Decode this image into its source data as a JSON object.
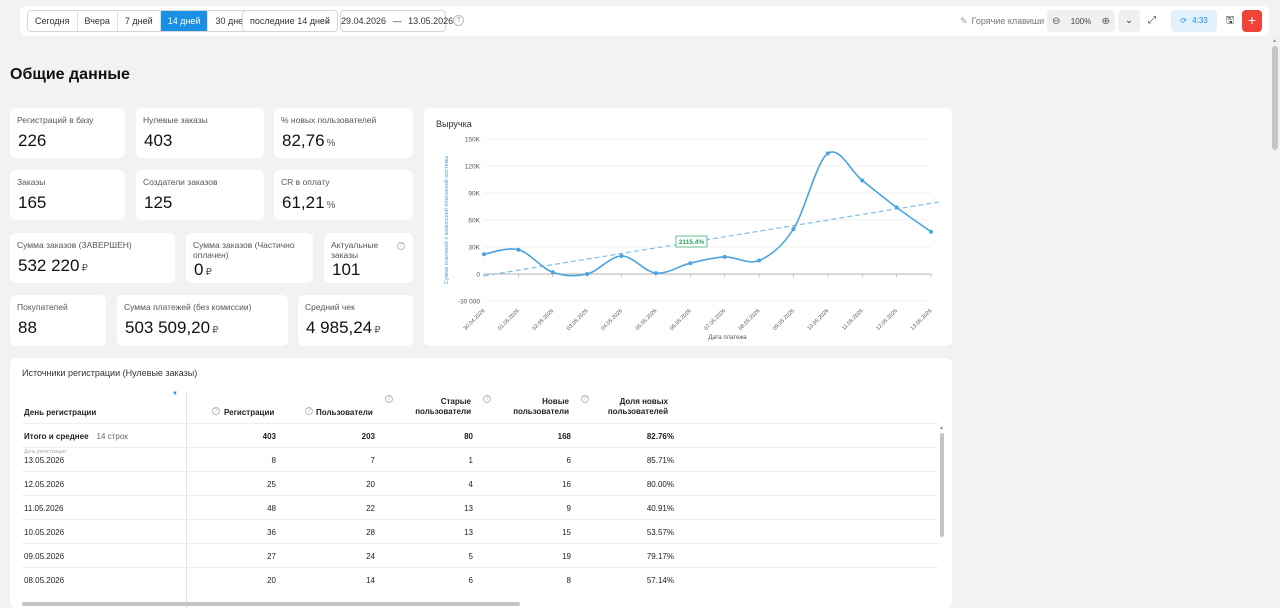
{
  "toolbar": {
    "periods": [
      {
        "label": "Сегодня",
        "active": false
      },
      {
        "label": "Вчера",
        "active": false
      },
      {
        "label": "7 дней",
        "active": false
      },
      {
        "label": "14 дней",
        "active": true
      },
      {
        "label": "30 дней",
        "active": false
      }
    ],
    "period_select": "последние 14 дней",
    "date_from": "29.04.2026",
    "date_separator": "—",
    "date_to": "13.05.2026",
    "hotkeys_label": "Горячие клавиши",
    "zoom_level": "100%",
    "refresh_time": "4:33"
  },
  "page_title": "Общие данные",
  "cards": [
    {
      "label": "Регистраций в базу",
      "value": "226",
      "unit": ""
    },
    {
      "label": "Нулевые заказы",
      "value": "403",
      "unit": ""
    },
    {
      "label": "% новых пользователей",
      "value": "82,76",
      "unit": "%"
    },
    {
      "label": "Заказы",
      "value": "165",
      "unit": ""
    },
    {
      "label": "Создатели заказов",
      "value": "125",
      "unit": ""
    },
    {
      "label": "CR в оплату",
      "value": "61,21",
      "unit": "%"
    },
    {
      "label": "Сумма заказов (ЗАВЕРШЕН)",
      "value": "532 220",
      "unit": "₽"
    },
    {
      "label": "Сумма заказов (Частично оплачен)",
      "value": "0",
      "unit": "₽"
    },
    {
      "label": "Актуальные заказы",
      "value": "101",
      "unit": ""
    },
    {
      "label": "Покупателей",
      "value": "88",
      "unit": ""
    },
    {
      "label": "Сумма платежей (без комиссии)",
      "value": "503 509,20",
      "unit": "₽"
    },
    {
      "label": "Средний чек",
      "value": "4 985,24",
      "unit": "₽"
    }
  ],
  "chart_data": {
    "type": "line",
    "title": "Выручка",
    "xlabel": "Дата платежа",
    "ylabel": "Сумма платежей с комиссией платежной системы",
    "categories": [
      "30.04.2026",
      "01.05.2026",
      "02.05.2026",
      "03.05.2026",
      "04.05.2026",
      "05.05.2026",
      "06.05.2026",
      "07.05.2026",
      "08.05.2026",
      "09.05.2026",
      "10.05.2026",
      "11.05.2026",
      "12.05.2026",
      "13.05.2026"
    ],
    "series": [
      {
        "values": [
          22000,
          27000,
          2000,
          0,
          20000,
          1000,
          12000,
          19000,
          15000,
          50000,
          134000,
          104000,
          74000,
          47000
        ],
        "color": "#4aa3df"
      }
    ],
    "trend": {
      "start": -2000,
      "end": 80000,
      "label": "2115.4%",
      "color": "#7cc0ea"
    },
    "ylim": [
      -30000,
      150000
    ],
    "yticks": [
      {
        "value": 150000,
        "label": "150K"
      },
      {
        "value": 120000,
        "label": "120K"
      },
      {
        "value": 90000,
        "label": "90K"
      },
      {
        "value": 60000,
        "label": "60K"
      },
      {
        "value": 30000,
        "label": "30K"
      },
      {
        "value": 0,
        "label": "0"
      },
      {
        "value": -30000,
        "label": "-30 000"
      }
    ],
    "grid": true,
    "legend": "none"
  },
  "table": {
    "title": "Источники регистрации (Нулевые заказы)",
    "columns": {
      "day": "День регистрации",
      "registrations": "Регистрации",
      "users": "Пользователи",
      "old_users": "Старые пользователи",
      "new_users": "Новые пользователи",
      "new_share": "Доля новых пользователей"
    },
    "first_row_sublabel": "День регистрации",
    "total": {
      "label": "Итого и среднее",
      "count": "14 строк",
      "registrations": "403",
      "users": "203",
      "old_users": "80",
      "new_users": "168",
      "new_share": "82.76%"
    },
    "rows": [
      {
        "day": "13.05.2026",
        "registrations": "8",
        "users": "7",
        "old_users": "1",
        "new_users": "6",
        "new_share": "85.71%"
      },
      {
        "day": "12.05.2026",
        "registrations": "25",
        "users": "20",
        "old_users": "4",
        "new_users": "16",
        "new_share": "80.00%"
      },
      {
        "day": "11.05.2026",
        "registrations": "48",
        "users": "22",
        "old_users": "13",
        "new_users": "9",
        "new_share": "40.91%"
      },
      {
        "day": "10.05.2026",
        "registrations": "36",
        "users": "28",
        "old_users": "13",
        "new_users": "15",
        "new_share": "53.57%"
      },
      {
        "day": "09.05.2026",
        "registrations": "27",
        "users": "24",
        "old_users": "5",
        "new_users": "19",
        "new_share": "79.17%"
      },
      {
        "day": "08.05.2026",
        "registrations": "20",
        "users": "14",
        "old_users": "6",
        "new_users": "8",
        "new_share": "57.14%"
      }
    ]
  }
}
